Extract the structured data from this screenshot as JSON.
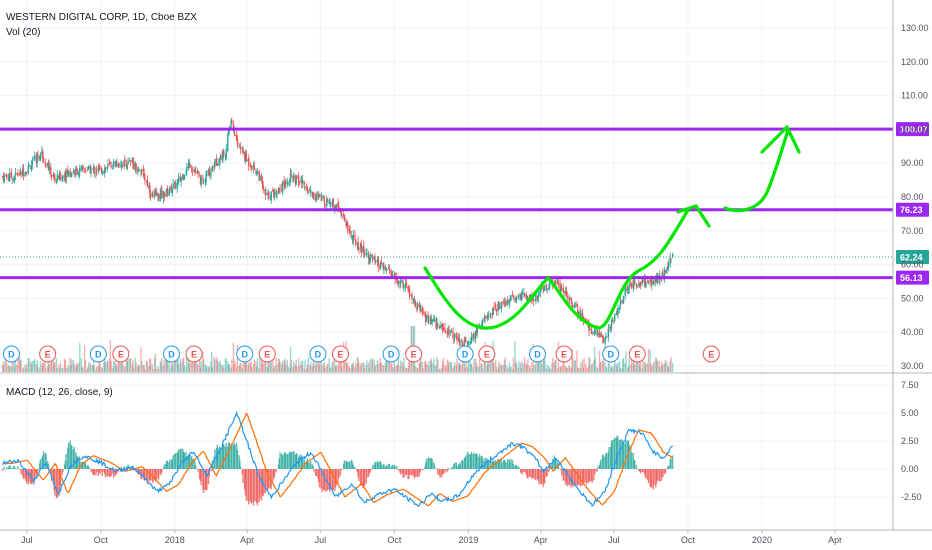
{
  "header": {
    "title": "WESTERN DIGITAL CORP, 1D, Cboe BZX",
    "volume_label": "Vol (20)",
    "macd_label": "MACD (12, 26, close, 9)"
  },
  "colors": {
    "up": "#26a69a",
    "down": "#ef5350",
    "level": "#9c27f0",
    "arrow": "#00e600",
    "macd_line": "#2196f3",
    "signal_line": "#ff6d00",
    "last_price": "#26a69a"
  },
  "chart_data": [
    {
      "type": "candlestick",
      "title": "WESTERN DIGITAL CORP, 1D, Cboe BZX",
      "x_ticks": [
        "Jul",
        "Oct",
        "2018",
        "Apr",
        "Jul",
        "Oct",
        "2019",
        "Apr",
        "Jul",
        "Oct",
        "2020",
        "Apr"
      ],
      "y_ticks": [
        30,
        40,
        50,
        60,
        70,
        80,
        90,
        100,
        110,
        120,
        130
      ],
      "ylim": [
        27,
        137
      ],
      "price_path": [
        [
          "2017-06-15",
          86
        ],
        [
          "2017-07-01",
          88
        ],
        [
          "2017-07-20",
          93
        ],
        [
          "2017-08-05",
          85
        ],
        [
          "2017-08-20",
          87
        ],
        [
          "2017-09-10",
          88
        ],
        [
          "2017-10-01",
          88
        ],
        [
          "2017-10-20",
          90
        ],
        [
          "2017-11-10",
          90
        ],
        [
          "2017-11-25",
          86
        ],
        [
          "2017-12-05",
          80
        ],
        [
          "2017-12-20",
          81
        ],
        [
          "2018-01-05",
          84
        ],
        [
          "2018-01-20",
          90
        ],
        [
          "2018-02-05",
          84
        ],
        [
          "2018-02-20",
          90
        ],
        [
          "2018-03-05",
          93
        ],
        [
          "2018-03-12",
          103
        ],
        [
          "2018-03-20",
          96
        ],
        [
          "2018-04-01",
          91
        ],
        [
          "2018-04-15",
          87
        ],
        [
          "2018-04-25",
          80
        ],
        [
          "2018-05-10",
          82
        ],
        [
          "2018-05-25",
          86
        ],
        [
          "2018-06-10",
          84
        ],
        [
          "2018-06-25",
          80
        ],
        [
          "2018-07-10",
          79
        ],
        [
          "2018-07-25",
          77
        ],
        [
          "2018-08-10",
          68
        ],
        [
          "2018-08-25",
          64
        ],
        [
          "2018-09-10",
          60
        ],
        [
          "2018-09-25",
          58
        ],
        [
          "2018-10-05",
          55
        ],
        [
          "2018-10-15",
          54
        ],
        [
          "2018-10-25",
          49
        ],
        [
          "2018-11-10",
          44
        ],
        [
          "2018-11-25",
          42
        ],
        [
          "2018-12-10",
          40
        ],
        [
          "2018-12-25",
          36
        ],
        [
          "2019-01-05",
          38
        ],
        [
          "2019-01-25",
          45
        ],
        [
          "2019-02-10",
          48
        ],
        [
          "2019-02-25",
          50
        ],
        [
          "2019-03-10",
          51
        ],
        [
          "2019-03-25",
          50
        ],
        [
          "2019-04-05",
          53
        ],
        [
          "2019-04-20",
          55
        ],
        [
          "2019-05-05",
          51
        ],
        [
          "2019-05-20",
          45
        ],
        [
          "2019-06-05",
          40
        ],
        [
          "2019-06-20",
          38
        ],
        [
          "2019-07-05",
          46
        ],
        [
          "2019-07-20",
          54
        ],
        [
          "2019-08-05",
          55
        ],
        [
          "2019-08-20",
          55
        ],
        [
          "2019-09-01",
          57
        ],
        [
          "2019-09-12",
          62.24
        ]
      ],
      "levels": [
        {
          "label": "100.07",
          "value": 100.07
        },
        {
          "label": "76.23",
          "value": 76.23
        },
        {
          "label": "56.13",
          "value": 56.13
        }
      ],
      "last_price": {
        "label": "62.24",
        "value": 62.24
      },
      "earnings_events": [
        {
          "label": "D",
          "date": "2017-06-12",
          "kind": "dividend"
        },
        {
          "label": "E",
          "date": "2017-07-27",
          "kind": "earnings"
        },
        {
          "label": "D",
          "date": "2017-09-28",
          "kind": "dividend"
        },
        {
          "label": "E",
          "date": "2017-10-26",
          "kind": "earnings"
        },
        {
          "label": "D",
          "date": "2017-12-28",
          "kind": "dividend"
        },
        {
          "label": "E",
          "date": "2018-01-25",
          "kind": "earnings"
        },
        {
          "label": "D",
          "date": "2018-03-29",
          "kind": "dividend"
        },
        {
          "label": "E",
          "date": "2018-04-26",
          "kind": "earnings"
        },
        {
          "label": "D",
          "date": "2018-06-28",
          "kind": "dividend"
        },
        {
          "label": "E",
          "date": "2018-07-26",
          "kind": "earnings"
        },
        {
          "label": "D",
          "date": "2018-09-27",
          "kind": "dividend"
        },
        {
          "label": "E",
          "date": "2018-10-25",
          "kind": "earnings"
        },
        {
          "label": "D",
          "date": "2018-12-28",
          "kind": "dividend"
        },
        {
          "label": "E",
          "date": "2019-01-24",
          "kind": "earnings"
        },
        {
          "label": "D",
          "date": "2019-03-28",
          "kind": "dividend"
        },
        {
          "label": "E",
          "date": "2019-04-30",
          "kind": "earnings"
        },
        {
          "label": "D",
          "date": "2019-06-27",
          "kind": "dividend"
        },
        {
          "label": "E",
          "date": "2019-07-30",
          "kind": "earnings"
        },
        {
          "label": "E",
          "date": "2019-10-30",
          "kind": "earnings"
        }
      ]
    },
    {
      "type": "line",
      "title": "MACD (12, 26, close, 9)",
      "y_ticks": [
        "7.50",
        "5.00",
        "2.50",
        "0.00",
        "-2.50"
      ],
      "ylim": [
        -4.5,
        8
      ],
      "macd_path": [
        [
          "2017-06-01",
          0.5
        ],
        [
          "2017-06-20",
          0.8
        ],
        [
          "2017-07-10",
          -1.0
        ],
        [
          "2017-07-25",
          0.5
        ],
        [
          "2017-08-10",
          -2.2
        ],
        [
          "2017-08-25",
          0.3
        ],
        [
          "2017-09-10",
          1.2
        ],
        [
          "2017-10-01",
          0.6
        ],
        [
          "2017-10-20",
          -0.2
        ],
        [
          "2017-11-10",
          0.2
        ],
        [
          "2017-11-25",
          -0.8
        ],
        [
          "2017-12-10",
          -2.0
        ],
        [
          "2017-12-25",
          -1.4
        ],
        [
          "2018-01-10",
          0.5
        ],
        [
          "2018-01-25",
          1.6
        ],
        [
          "2018-02-10",
          -0.6
        ],
        [
          "2018-02-25",
          1.5
        ],
        [
          "2018-03-10",
          3.5
        ],
        [
          "2018-03-20",
          5.0
        ],
        [
          "2018-04-01",
          2.5
        ],
        [
          "2018-04-15",
          -0.5
        ],
        [
          "2018-05-01",
          -2.5
        ],
        [
          "2018-05-15",
          -1.2
        ],
        [
          "2018-06-01",
          0.5
        ],
        [
          "2018-06-20",
          1.5
        ],
        [
          "2018-07-05",
          -0.5
        ],
        [
          "2018-07-20",
          -2.5
        ],
        [
          "2018-08-10",
          -1.3
        ],
        [
          "2018-08-25",
          -3.0
        ],
        [
          "2018-09-10",
          -2.3
        ],
        [
          "2018-10-01",
          -1.8
        ],
        [
          "2018-10-15",
          -2.5
        ],
        [
          "2018-11-01",
          -3.3
        ],
        [
          "2018-11-15",
          -2.2
        ],
        [
          "2018-12-01",
          -2.9
        ],
        [
          "2018-12-20",
          -2.4
        ],
        [
          "2019-01-10",
          -0.3
        ],
        [
          "2019-01-25",
          0.6
        ],
        [
          "2019-02-10",
          1.5
        ],
        [
          "2019-02-25",
          2.3
        ],
        [
          "2019-03-10",
          2.0
        ],
        [
          "2019-03-25",
          1.0
        ],
        [
          "2019-04-05",
          -0.2
        ],
        [
          "2019-04-20",
          1.0
        ],
        [
          "2019-05-05",
          -0.5
        ],
        [
          "2019-05-20",
          -2.0
        ],
        [
          "2019-06-05",
          -3.2
        ],
        [
          "2019-06-20",
          -2.0
        ],
        [
          "2019-07-05",
          1.0
        ],
        [
          "2019-07-20",
          3.5
        ],
        [
          "2019-08-05",
          3.2
        ],
        [
          "2019-08-20",
          1.5
        ],
        [
          "2019-09-01",
          1.0
        ],
        [
          "2019-09-12",
          2.0
        ]
      ],
      "signal_lag_days": 12
    }
  ]
}
